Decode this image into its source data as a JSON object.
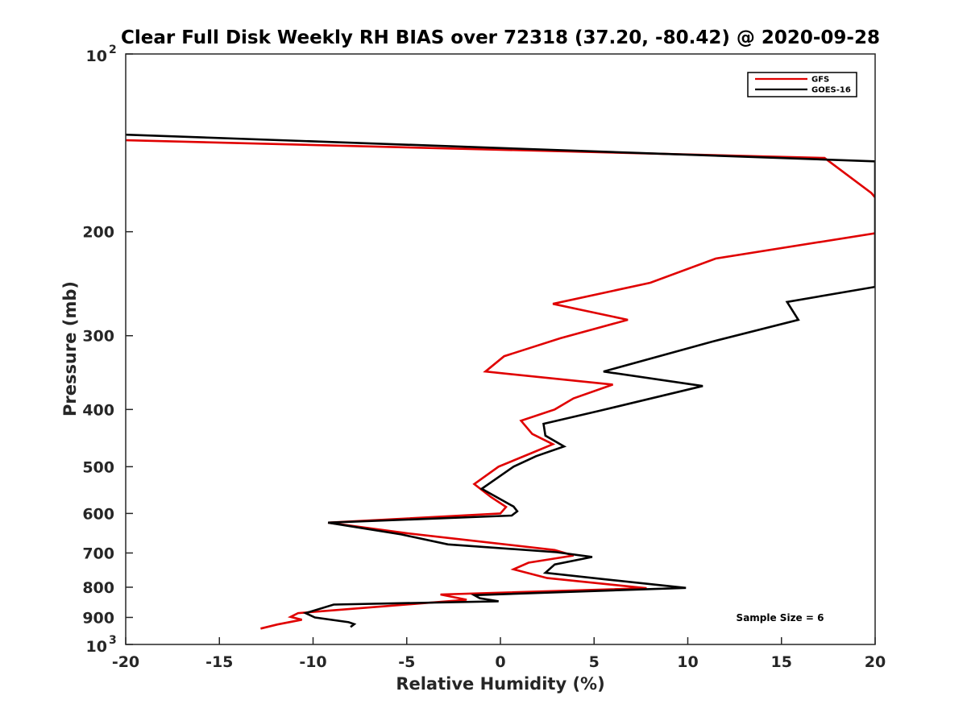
{
  "chart_data": {
    "type": "line",
    "title": "Clear Full Disk Weekly RH BIAS over 72318 (37.20, -80.42) @ 2020-09-28",
    "xlabel": "Relative Humidity (%)",
    "ylabel": "Pressure (mb)",
    "xlim": [
      -20,
      20
    ],
    "ylim": [
      100,
      1000
    ],
    "yscale": "log",
    "y_reversed": true,
    "grid": false,
    "x_ticks": [
      "-20",
      "-15",
      "-10",
      "-5",
      "0",
      "5",
      "10",
      "15",
      "20"
    ],
    "y_ticks": [
      {
        "value": 100,
        "base": "10",
        "exp": "2"
      },
      {
        "value": 200,
        "label": "200"
      },
      {
        "value": 300,
        "label": "300"
      },
      {
        "value": 400,
        "label": "400"
      },
      {
        "value": 500,
        "label": "500"
      },
      {
        "value": 600,
        "label": "600"
      },
      {
        "value": 700,
        "label": "700"
      },
      {
        "value": 800,
        "label": "800"
      },
      {
        "value": 900,
        "label": "900"
      },
      {
        "value": 1000,
        "base": "10",
        "exp": "3"
      }
    ],
    "legend_position": "top-right",
    "series": [
      {
        "name": "GFS",
        "color": "#e00000",
        "points": [
          [
            -20,
            140
          ],
          [
            17.3,
            150
          ],
          [
            19.8,
            172
          ],
          [
            20.2,
            178
          ],
          [
            20.5,
            200
          ],
          [
            11.5,
            222
          ],
          [
            8,
            244
          ],
          [
            2.8,
            265
          ],
          [
            6.8,
            282
          ],
          [
            3.2,
            303
          ],
          [
            0.2,
            325
          ],
          [
            -0.8,
            345
          ],
          [
            6,
            363
          ],
          [
            3.9,
            383
          ],
          [
            2.9,
            400
          ],
          [
            1.1,
            418
          ],
          [
            1.7,
            440
          ],
          [
            2.8,
            458
          ],
          [
            1.6,
            475
          ],
          [
            -0.1,
            500
          ],
          [
            -1.4,
            535
          ],
          [
            -0.5,
            563
          ],
          [
            0.3,
            585
          ],
          [
            0,
            600
          ],
          [
            -9.2,
            622
          ],
          [
            -5,
            648
          ],
          [
            2.9,
            692
          ],
          [
            3.9,
            707
          ],
          [
            1.5,
            727
          ],
          [
            0.7,
            746
          ],
          [
            2.5,
            772
          ],
          [
            7.8,
            803
          ],
          [
            -3.2,
            823
          ],
          [
            -1.8,
            840
          ],
          [
            -10.8,
            885
          ],
          [
            -11.2,
            898
          ],
          [
            -10.6,
            908
          ],
          [
            -11.9,
            925
          ],
          [
            -12.8,
            940
          ]
        ]
      },
      {
        "name": "GOES-16",
        "color": "#000000",
        "points": [
          [
            -20,
            137
          ],
          [
            20,
            152
          ],
          [
            20,
            248
          ],
          [
            15.3,
            263
          ],
          [
            15.9,
            282
          ],
          [
            11.3,
            307
          ],
          [
            5.5,
            345
          ],
          [
            10.8,
            365
          ],
          [
            5.3,
            402
          ],
          [
            2.3,
            423
          ],
          [
            2.4,
            443
          ],
          [
            3.4,
            462
          ],
          [
            1.9,
            480
          ],
          [
            0.7,
            500
          ],
          [
            -1,
            545
          ],
          [
            0.7,
            584
          ],
          [
            0.9,
            595
          ],
          [
            0.6,
            605
          ],
          [
            -9.2,
            622
          ],
          [
            -5.3,
            651
          ],
          [
            -2.8,
            677
          ],
          [
            3,
            698
          ],
          [
            4.9,
            711
          ],
          [
            2.9,
            732
          ],
          [
            2.4,
            756
          ],
          [
            5.5,
            775
          ],
          [
            9.9,
            802
          ],
          [
            -1.4,
            825
          ],
          [
            -1.1,
            835
          ],
          [
            -0.1,
            845
          ],
          [
            -8.9,
            856
          ],
          [
            -10.4,
            885
          ],
          [
            -9.9,
            900
          ],
          [
            -8.1,
            917
          ],
          [
            -7.8,
            924
          ],
          [
            -8,
            934
          ]
        ]
      }
    ],
    "annotations": [
      "Sample Size = 6"
    ]
  }
}
